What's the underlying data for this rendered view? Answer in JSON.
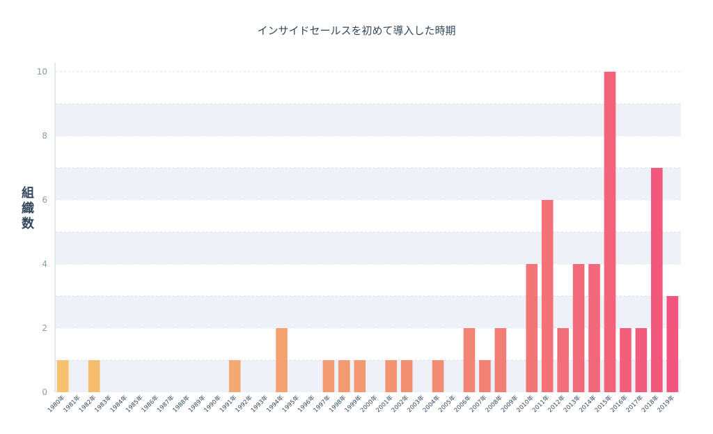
{
  "chart_data": {
    "type": "bar",
    "title": "インサイドセールスを初めて導入した時期",
    "ylabel": "組織数",
    "xlabel": "",
    "ylim": [
      0,
      10
    ],
    "yticks": [
      "0",
      "2",
      "4",
      "6",
      "8",
      "10"
    ],
    "grid": true,
    "categories": [
      "1980年",
      "1981年",
      "1982年",
      "1983年",
      "1984年",
      "1985年",
      "1986年",
      "1987年",
      "1988年",
      "1989年",
      "1990年",
      "1991年",
      "1992年",
      "1993年",
      "1994年",
      "1995年",
      "1996年",
      "1997年",
      "1998年",
      "1999年",
      "2000年",
      "2001年",
      "2002年",
      "2003年",
      "2004年",
      "2005年",
      "2006年",
      "2007年",
      "2008年",
      "2009年",
      "2010年",
      "2011年",
      "2012年",
      "2013年",
      "2014年",
      "2015年",
      "2016年",
      "2017年",
      "2018年",
      "2019年"
    ],
    "values": [
      1,
      0,
      1,
      0,
      0,
      0,
      0,
      0,
      0,
      0,
      0,
      1,
      0,
      0,
      2,
      0,
      0,
      1,
      1,
      1,
      0,
      1,
      1,
      0,
      1,
      0,
      2,
      1,
      2,
      0,
      4,
      6,
      2,
      4,
      4,
      10,
      2,
      2,
      7,
      3
    ],
    "colors": {
      "start": "#f7c16e",
      "mid": "#f28e72",
      "end": "#f2547d",
      "band": "#eef2f8"
    }
  }
}
